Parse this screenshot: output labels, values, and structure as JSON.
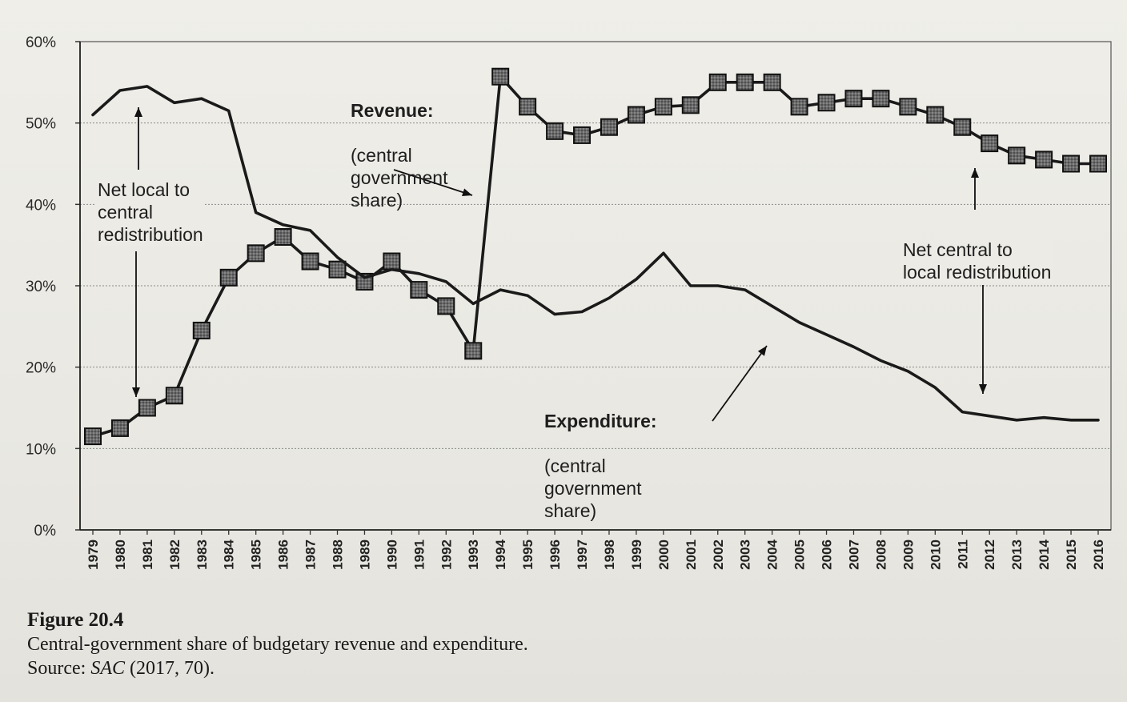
{
  "chart_data": {
    "type": "line",
    "ylim": [
      0,
      60
    ],
    "yticks": [
      "0%",
      "10%",
      "20%",
      "30%",
      "40%",
      "50%",
      "60%"
    ],
    "x": [
      "1979",
      "1980",
      "1981",
      "1982",
      "1983",
      "1984",
      "1985",
      "1986",
      "1987",
      "1988",
      "1989",
      "1990",
      "1991",
      "1992",
      "1993",
      "1994",
      "1995",
      "1996",
      "1997",
      "1998",
      "1999",
      "2000",
      "2001",
      "2002",
      "2003",
      "2004",
      "2005",
      "2006",
      "2007",
      "2008",
      "2009",
      "2010",
      "2011",
      "2012",
      "2013",
      "2014",
      "2015",
      "2016"
    ],
    "series": [
      {
        "name": "Revenue",
        "marker": "square",
        "color": "#1a1a1a",
        "values": [
          11.5,
          12.5,
          15.0,
          16.5,
          24.5,
          31.0,
          34.0,
          36.0,
          33.0,
          32.0,
          30.5,
          33.0,
          29.5,
          27.5,
          22.0,
          55.7,
          52.0,
          49.0,
          48.5,
          49.5,
          51.0,
          52.0,
          52.2,
          55.0,
          55.0,
          55.0,
          52.0,
          52.5,
          53.0,
          53.0,
          52.0,
          51.0,
          49.5,
          47.5,
          46.0,
          45.5,
          45.0,
          45.0
        ]
      },
      {
        "name": "Expenditure",
        "marker": "none",
        "color": "#1a1a1a",
        "values": [
          51.0,
          54.0,
          54.5,
          52.5,
          53.0,
          51.5,
          39.0,
          37.5,
          36.8,
          33.5,
          31.0,
          32.0,
          31.5,
          30.5,
          27.8,
          29.5,
          28.8,
          26.5,
          26.8,
          28.5,
          30.8,
          34.0,
          30.0,
          30.0,
          29.5,
          27.5,
          25.5,
          24.0,
          22.5,
          20.8,
          19.5,
          17.5,
          14.5,
          14.0,
          13.5,
          13.8,
          13.5,
          13.5
        ]
      }
    ]
  },
  "annotations": {
    "revenue": {
      "title": "Revenue:",
      "body": "(central\ngovernment\nshare)"
    },
    "expenditure": {
      "title": "Expenditure:",
      "body": "(central\ngovernment\nshare)"
    },
    "net_local_to_central": "Net local to\ncentral\nredistribution",
    "net_central_to_local": "Net central to\nlocal redistribution"
  },
  "caption": {
    "label": "Figure 20.4",
    "text": "Central-government share of budgetary revenue and expenditure.",
    "source_prefix": "Source: ",
    "source_title": "SAC",
    "source_suffix": " (2017, 70)."
  }
}
